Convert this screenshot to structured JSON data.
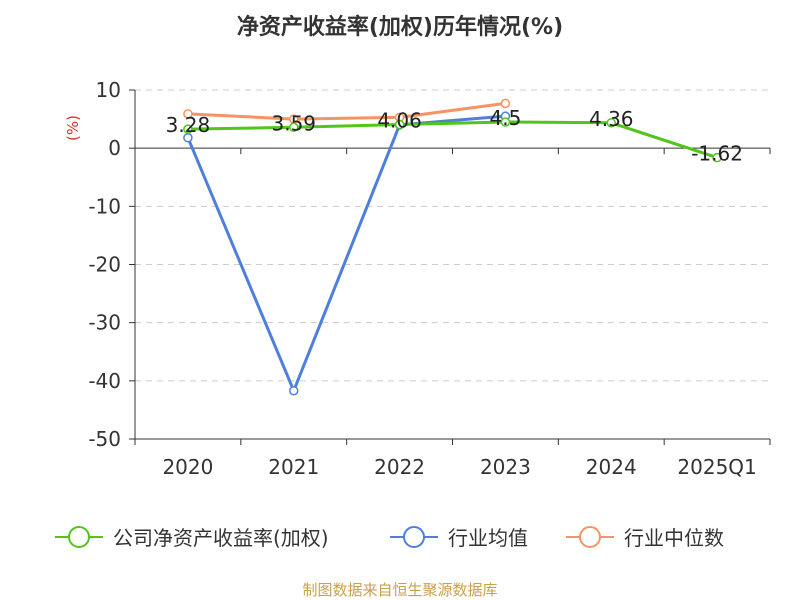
{
  "chart_data": {
    "type": "line",
    "title": "净资产收益率(加权)历年情况(%)",
    "ylabel": "(%)",
    "xlabel": "",
    "categories": [
      "2020",
      "2021",
      "2022",
      "2023",
      "2024",
      "2025Q1"
    ],
    "ylim": [
      -50,
      10
    ],
    "yticks": [
      10,
      0,
      -10,
      -20,
      -30,
      -40,
      -50
    ],
    "grid": true,
    "legend_position": "bottom",
    "series": [
      {
        "name": "公司净资产收益率(加权)",
        "color": "#52c41a",
        "values": [
          3.28,
          3.59,
          4.06,
          4.5,
          4.36,
          -1.62
        ],
        "data_labels": [
          "3.28",
          "3.59",
          "4.06",
          "4.5",
          "4.36",
          "-1.62"
        ]
      },
      {
        "name": "行业均值",
        "color": "#4e7fdc",
        "values": [
          1.8,
          -41.7,
          4.0,
          5.5,
          null,
          null
        ]
      },
      {
        "name": "行业中位数",
        "color": "#f59462",
        "values": [
          5.9,
          5.0,
          5.3,
          7.7,
          null,
          null
        ]
      }
    ]
  },
  "footer": {
    "source": "制图数据来自恒生聚源数据库",
    "source_color": "#c9a14a"
  }
}
